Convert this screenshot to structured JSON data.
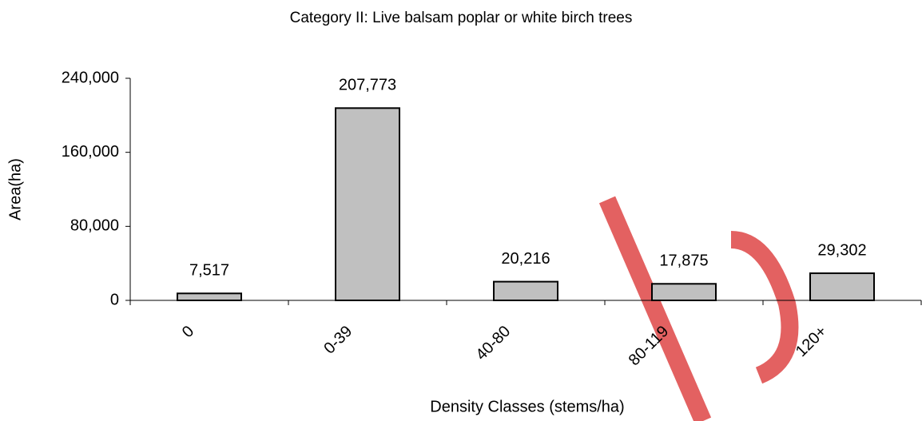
{
  "chart_data": {
    "type": "bar",
    "title": "Category II: Live balsam poplar or white birch trees",
    "x_label": "Density Classes (stems/ha)",
    "y_label": "Area(ha)",
    "categories": [
      "0",
      "0-39",
      "40-80",
      "80-119",
      "120+"
    ],
    "values": [
      7517,
      207773,
      20216,
      17875,
      29302
    ],
    "value_labels": [
      "7,517",
      "207,773",
      "20,216",
      "17,875",
      "29,302"
    ],
    "color": "#c0c0c0",
    "ylim": [
      0,
      240000
    ],
    "yticks": [
      0,
      {
        "value": 80000,
        "label": "80,000"
      },
      {
        "value": 160000,
        "label": "160,000"
      },
      {
        "value": 240000,
        "label": "240,000"
      }
    ],
    "grid": false
  }
}
